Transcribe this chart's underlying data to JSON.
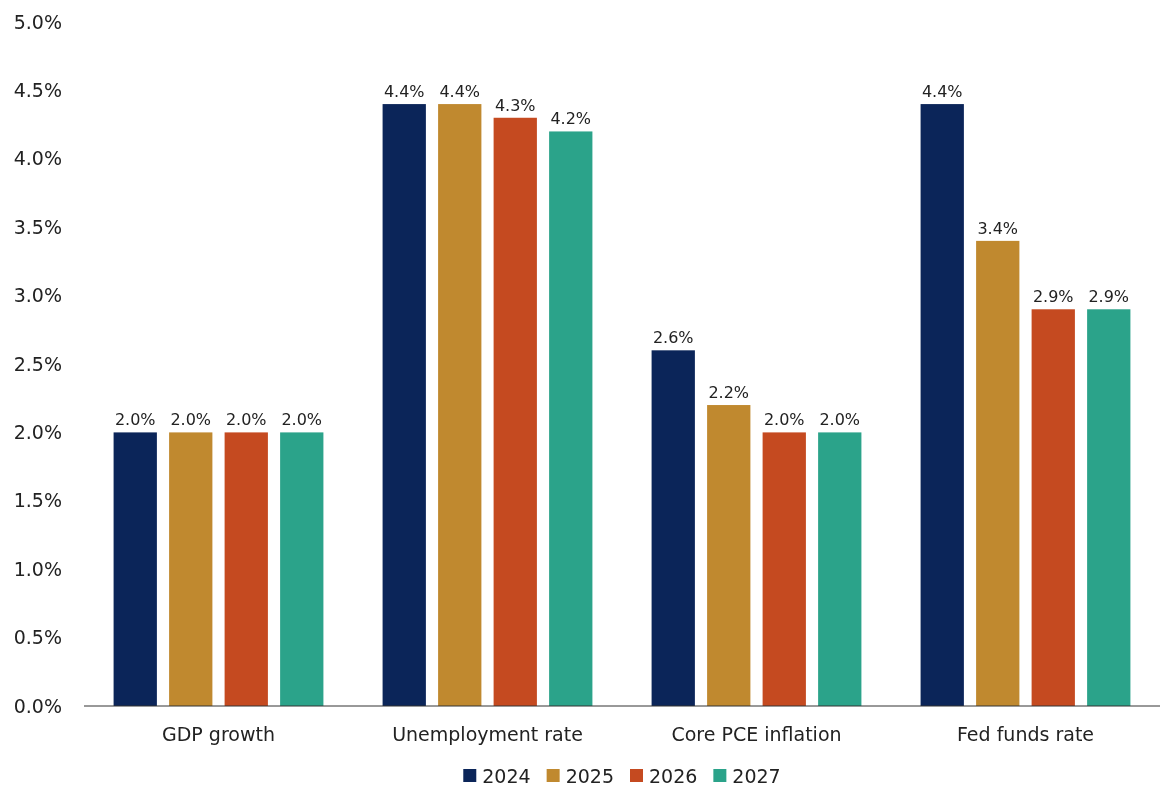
{
  "chart_data": {
    "type": "bar",
    "categories": [
      "GDP growth",
      "Unemployment rate",
      "Core PCE inflation",
      "Fed funds rate"
    ],
    "series": [
      {
        "name": "2024",
        "color": "#0b2559",
        "values": [
          2.0,
          4.4,
          2.6,
          4.4
        ],
        "value_labels": [
          "2.0%",
          "4.4%",
          "2.6%",
          "4.4%"
        ]
      },
      {
        "name": "2025",
        "color": "#c0892f",
        "values": [
          2.0,
          4.4,
          2.2,
          3.4
        ],
        "value_labels": [
          "2.0%",
          "4.4%",
          "2.2%",
          "3.4%"
        ]
      },
      {
        "name": "2026",
        "color": "#c54a20",
        "values": [
          2.0,
          4.3,
          2.0,
          2.9
        ],
        "value_labels": [
          "2.0%",
          "4.3%",
          "2.0%",
          "2.9%"
        ]
      },
      {
        "name": "2027",
        "color": "#2ba38a",
        "values": [
          2.0,
          4.2,
          2.0,
          2.9
        ],
        "value_labels": [
          "2.0%",
          "4.2%",
          "2.0%",
          "2.9%"
        ]
      }
    ],
    "ylim": [
      0,
      5
    ],
    "yticks": [
      {
        "value": 0,
        "label": "0.0%"
      },
      {
        "value": 0.5,
        "label": "0.5%"
      },
      {
        "value": 1,
        "label": "1.0%"
      },
      {
        "value": 1.5,
        "label": "1.5%"
      },
      {
        "value": 2,
        "label": "2.0%"
      },
      {
        "value": 2.5,
        "label": "2.5%"
      },
      {
        "value": 3,
        "label": "3.0%"
      },
      {
        "value": 3.5,
        "label": "3.5%"
      },
      {
        "value": 4,
        "label": "4.0%"
      },
      {
        "value": 4.5,
        "label": "4.5%"
      },
      {
        "value": 5,
        "label": "5.0%"
      }
    ],
    "grid": false,
    "legend": "bottom"
  }
}
